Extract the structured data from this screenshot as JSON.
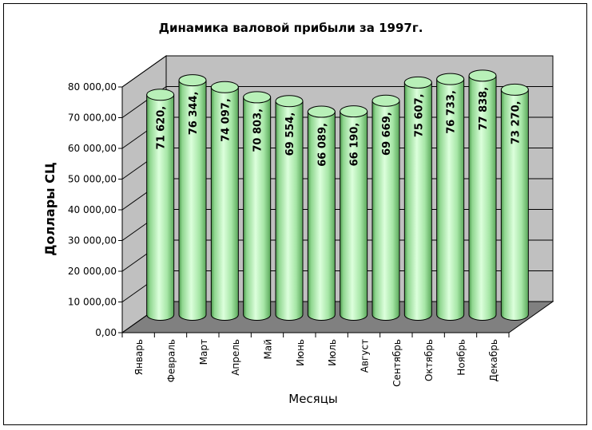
{
  "chart_data": {
    "type": "bar",
    "title": "Динамика валовой прибыли за 1997г.",
    "xlabel": "Месяцы",
    "ylabel": "Доллары СЦ",
    "ylim": [
      0,
      80000
    ],
    "y_ticks": [
      "0,00",
      "10 000,00",
      "20 000,00",
      "30 000,00",
      "40 000,00",
      "50 000,00",
      "60 000,00",
      "70 000,00",
      "80 000,00"
    ],
    "categories": [
      "Январь",
      "Февраль",
      "Март",
      "Апрель",
      "Май",
      "Июнь",
      "Июль",
      "Август",
      "Сентябрь",
      "Октябрь",
      "Ноябрь",
      "Декабрь"
    ],
    "values": [
      71620,
      76344,
      74097,
      70803,
      69554,
      66089,
      66190,
      69669,
      75607,
      76733,
      77838,
      73270
    ],
    "data_labels": [
      "71 620,",
      "76 344,",
      "74 097,",
      "70 803,",
      "69 554,",
      "66 089,",
      "66 190,",
      "69 669,",
      "75 607,",
      "76 733,",
      "77 838,",
      "73 270,"
    ],
    "grid": true,
    "bar_shape": "cylinder",
    "colors": {
      "bar": "#b8f0b8",
      "bar_dark": "#6fbf6f",
      "wall": "#c0c0c0",
      "floor": "#808080"
    }
  }
}
